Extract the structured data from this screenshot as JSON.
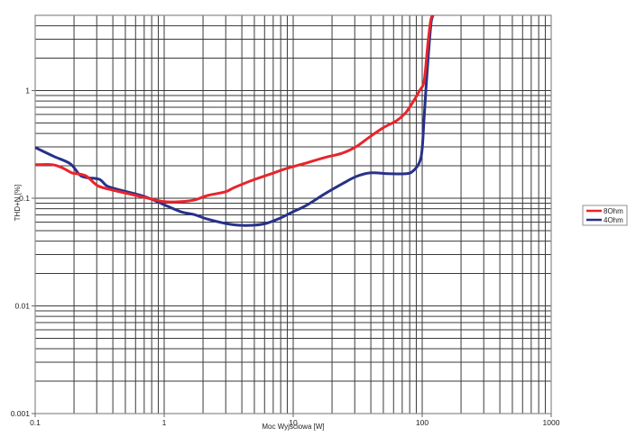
{
  "chart_data": {
    "type": "line",
    "title": "",
    "xlabel": "Moc Wyjściowa [W]",
    "ylabel": "THD+N [%]",
    "xscale": "log",
    "yscale": "log",
    "xlim": [
      0.1,
      1000
    ],
    "ylim": [
      0.001,
      5
    ],
    "grid": true,
    "legend_position": "right",
    "x_ticks": [
      "0.1",
      "1",
      "10",
      "100",
      "1000"
    ],
    "y_ticks": [
      "0.001",
      "0.01",
      "0.1",
      "1"
    ],
    "series": [
      {
        "name": "8Ohm",
        "color": "#e8252b",
        "points": [
          [
            0.1,
            0.205
          ],
          [
            0.136,
            0.205
          ],
          [
            0.165,
            0.19
          ],
          [
            0.193,
            0.172
          ],
          [
            0.246,
            0.162
          ],
          [
            0.304,
            0.131
          ],
          [
            0.4,
            0.119
          ],
          [
            0.7,
            0.102
          ],
          [
            1.0,
            0.093
          ],
          [
            1.34,
            0.093
          ],
          [
            1.7,
            0.096
          ],
          [
            2.17,
            0.106
          ],
          [
            2.99,
            0.115
          ],
          [
            3.51,
            0.126
          ],
          [
            4.84,
            0.147
          ],
          [
            6.7,
            0.168
          ],
          [
            8.5,
            0.186
          ],
          [
            12.7,
            0.213
          ],
          [
            17.6,
            0.239
          ],
          [
            24.2,
            0.263
          ],
          [
            30.8,
            0.302
          ],
          [
            39.4,
            0.373
          ],
          [
            50.0,
            0.452
          ],
          [
            63.6,
            0.528
          ],
          [
            74.9,
            0.628
          ],
          [
            87.9,
            0.84
          ],
          [
            95.5,
            1.0
          ],
          [
            103.6,
            1.24
          ],
          [
            110.5,
            2.68
          ],
          [
            116,
            4.35
          ],
          [
            119.5,
            5.0
          ]
        ]
      },
      {
        "name": "4Ohm",
        "color": "#27318a",
        "points": [
          [
            0.1,
            0.296
          ],
          [
            0.14,
            0.244
          ],
          [
            0.187,
            0.209
          ],
          [
            0.22,
            0.166
          ],
          [
            0.246,
            0.156
          ],
          [
            0.314,
            0.15
          ],
          [
            0.357,
            0.131
          ],
          [
            0.433,
            0.121
          ],
          [
            0.7,
            0.104
          ],
          [
            1.0,
            0.087
          ],
          [
            1.34,
            0.075
          ],
          [
            1.7,
            0.0706
          ],
          [
            2.17,
            0.064
          ],
          [
            2.99,
            0.0583
          ],
          [
            3.8,
            0.0561
          ],
          [
            4.84,
            0.0561
          ],
          [
            6.16,
            0.0583
          ],
          [
            7.85,
            0.065
          ],
          [
            10,
            0.075
          ],
          [
            12.7,
            0.086
          ],
          [
            17.6,
            0.11
          ],
          [
            24.2,
            0.137
          ],
          [
            30.8,
            0.159
          ],
          [
            39.4,
            0.172
          ],
          [
            54.4,
            0.169
          ],
          [
            74.9,
            0.169
          ],
          [
            85,
            0.179
          ],
          [
            95.5,
            0.217
          ],
          [
            100,
            0.29
          ],
          [
            103.6,
            0.57
          ],
          [
            106.9,
            1.02
          ],
          [
            110.5,
            1.82
          ],
          [
            114,
            2.95
          ],
          [
            117.5,
            4.35
          ],
          [
            121,
            5.0
          ]
        ]
      }
    ]
  },
  "legend": {
    "items": [
      {
        "label": "8Ohm",
        "color": "#e8252b"
      },
      {
        "label": "4Ohm",
        "color": "#27318a"
      }
    ]
  },
  "colors": {
    "grid": "#3a3a3a",
    "border": "#8a8a8a",
    "background": "#ffffff"
  }
}
